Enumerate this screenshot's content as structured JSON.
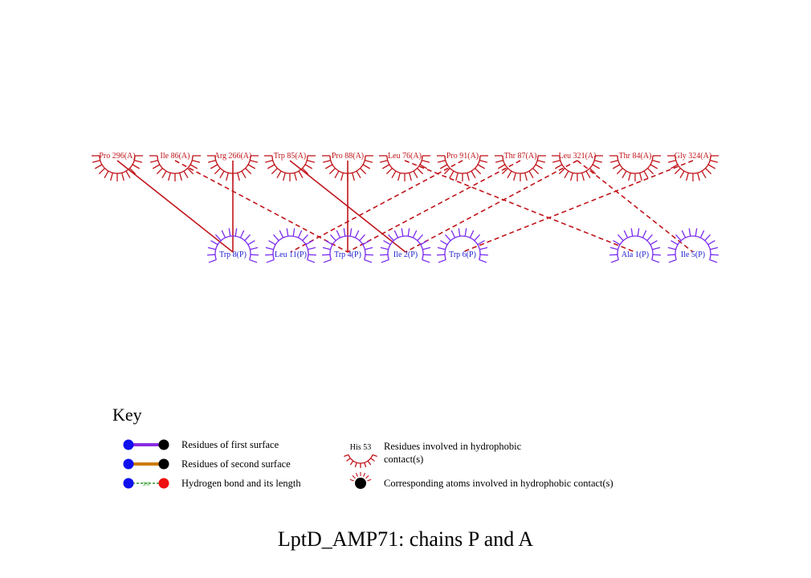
{
  "colors": {
    "chain_a": "#c0151b",
    "chain_p": "#7b2cf0",
    "chain_p_label": "#2020d0",
    "first_surface_bond": "#8a2be2",
    "second_surface_bond": "#cc7a00",
    "hbond": "#2a9a2a",
    "atom_blue": "#1010ee",
    "atom_black": "#000000",
    "atom_red": "#ee1010"
  },
  "top_residues": [
    {
      "id": "pro296",
      "label": "Pro 296(A)"
    },
    {
      "id": "ile86",
      "label": "Ile 86(A)"
    },
    {
      "id": "arg266",
      "label": "Arg 266(A)"
    },
    {
      "id": "trp85",
      "label": "Trp 85(A)"
    },
    {
      "id": "pro88",
      "label": "Pro 88(A)"
    },
    {
      "id": "leu76",
      "label": "Leu 76(A)"
    },
    {
      "id": "pro91",
      "label": "Pro 91(A)"
    },
    {
      "id": "thr87",
      "label": "Thr 87(A)"
    },
    {
      "id": "leu321",
      "label": "Leu 321(A)"
    },
    {
      "id": "thr84",
      "label": "Thr 84(A)"
    },
    {
      "id": "gly324",
      "label": "Gly 324(A)"
    }
  ],
  "bottom_residues": [
    {
      "id": "trp8",
      "label": "Trp 8(P)"
    },
    {
      "id": "leu11",
      "label": "Leu 11(P)"
    },
    {
      "id": "trp4",
      "label": "Trp 4(P)"
    },
    {
      "id": "ile2",
      "label": "Ile 2(P)"
    },
    {
      "id": "trp6",
      "label": "Trp 6(P)"
    },
    {
      "id": "ala1",
      "label": "Ala 1(P)"
    },
    {
      "id": "ile5",
      "label": "Ile 5(P)"
    }
  ],
  "contacts": [
    {
      "from": "pro296",
      "to": "trp8",
      "style": "solid"
    },
    {
      "from": "arg266",
      "to": "trp8",
      "style": "solid"
    },
    {
      "from": "ile86",
      "to": "trp4",
      "style": "dashed"
    },
    {
      "from": "trp85",
      "to": "ile2",
      "style": "solid"
    },
    {
      "from": "pro88",
      "to": "trp4",
      "style": "solid"
    },
    {
      "from": "pro91",
      "to": "leu11",
      "style": "dashed"
    },
    {
      "from": "thr87",
      "to": "trp4",
      "style": "dashed"
    },
    {
      "from": "leu76",
      "to": "ala1",
      "style": "dashed"
    },
    {
      "from": "leu321",
      "to": "ile2",
      "style": "dashed"
    },
    {
      "from": "leu321",
      "to": "ile5",
      "style": "dashed"
    },
    {
      "from": "gly324",
      "to": "trp6",
      "style": "dashed"
    }
  ],
  "key": {
    "title": "Key",
    "first_surface": "Residues of first surface",
    "second_surface": "Residues of second surface",
    "hbond": "Hydrogen bond and its length",
    "hbond_length": "3.0",
    "hydrophobic_example_label": "His 53",
    "hydrophobic_line1": "Residues involved in hydrophobic",
    "hydrophobic_line2": "contact(s)",
    "atoms": "Corresponding atoms involved in hydrophobic contact(s)"
  },
  "title": "LptD_AMP71: chains P and A"
}
